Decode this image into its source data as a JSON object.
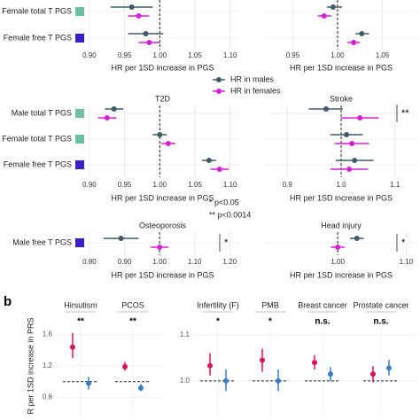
{
  "chart_data": [
    {
      "type": "forest",
      "categories": [
        "Female total T PGS",
        "Female free T PGS"
      ],
      "category_colors": [
        "#6dbfa6",
        "#3a1fc9"
      ],
      "series": [
        {
          "color": "#3d5c67",
          "values": [
            0.96,
            0.98
          ],
          "lower": [
            0.93,
            0.955
          ],
          "upper": [
            0.99,
            1.005
          ]
        },
        {
          "color": "#d61fd6",
          "values": [
            0.97,
            0.985
          ],
          "lower": [
            0.955,
            0.97
          ],
          "upper": [
            0.985,
            1.0
          ]
        }
      ],
      "xlim": [
        0.895,
        1.113
      ],
      "xticks": [
        {
          "value": 0.9,
          "label": "0.90"
        },
        {
          "value": 0.95,
          "label": "0.95"
        },
        {
          "value": 1,
          "label": "1.00"
        },
        {
          "value": 1.05,
          "label": "1.05"
        },
        {
          "value": 1.1,
          "label": "1.10"
        }
      ],
      "refline": 1,
      "xlabel": "HR per 1SD increase in PGS"
    },
    {
      "type": "forest",
      "series": [
        {
          "color": "#3d5c67",
          "values": [
            0.995,
            1.027
          ],
          "lower": [
            0.988,
            1.02
          ],
          "upper": [
            1.005,
            1.035
          ]
        },
        {
          "color": "#d61fd6",
          "values": [
            0.985,
            1.018
          ],
          "lower": [
            0.978,
            1.011
          ],
          "upper": [
            0.993,
            1.025
          ]
        }
      ],
      "xlim": [
        0.92,
        1.088
      ],
      "xticks": [
        {
          "value": 0.95,
          "label": "0.95"
        },
        {
          "value": 1,
          "label": "1.00"
        },
        {
          "value": 1.05,
          "label": "1.05"
        }
      ],
      "refline": 1,
      "xlabel": "HR per 1SD increase in PGS"
    },
    {
      "type": "forest",
      "title": "T2D",
      "categories": [
        "Male total T PGS",
        "Female total T PGS",
        "Female free T PGS"
      ],
      "category_colors": [
        "#6dbfa6",
        "#6dbfa6",
        "#3a1fc9"
      ],
      "series": [
        {
          "name": "HR in males",
          "color": "#3d5c67",
          "values": [
            0.935,
            1.0,
            1.07
          ],
          "lower": [
            0.922,
            0.99,
            1.06
          ],
          "upper": [
            0.948,
            1.01,
            1.08
          ]
        },
        {
          "name": "HR in females",
          "color": "#d61fd6",
          "values": [
            0.925,
            1.012,
            1.085
          ],
          "lower": [
            0.912,
            1.002,
            1.072
          ],
          "upper": [
            0.938,
            1.022,
            1.098
          ]
        }
      ],
      "xlim": [
        0.895,
        1.113
      ],
      "xticks": [
        {
          "value": 0.9,
          "label": "0.90"
        },
        {
          "value": 0.95,
          "label": "0.95"
        },
        {
          "value": 1,
          "label": "1.00"
        },
        {
          "value": 1.05,
          "label": "1.05"
        },
        {
          "value": 1.1,
          "label": "1.10"
        }
      ],
      "refline": 1,
      "xlabel": "HR per 1SD increase in PGS"
    },
    {
      "type": "forest",
      "title": "Stroke",
      "series": [
        {
          "color": "#3d5c67",
          "values": [
            0.972,
            1.01,
            1.025
          ],
          "lower": [
            0.94,
            0.98,
            0.99
          ],
          "upper": [
            1.003,
            1.04,
            1.06
          ]
        },
        {
          "color": "#d61fd6",
          "values": [
            1.035,
            1.02,
            1.015
          ],
          "lower": [
            1.0,
            0.988,
            0.98
          ],
          "upper": [
            1.07,
            1.052,
            1.05
          ]
        }
      ],
      "significance": [
        "**",
        null,
        null
      ],
      "xlim": [
        0.86,
        1.14
      ],
      "xticks": [
        0.9,
        {
          "value": 1,
          "label": "1.0"
        },
        1.1
      ],
      "refline": 1,
      "xlabel": "HR per 1SD increase in PGS"
    },
    {
      "type": "forest",
      "title": "Osteoporosis",
      "categories": [
        "Male free T PGS"
      ],
      "category_colors": [
        "#3a1fc9"
      ],
      "series": [
        {
          "color": "#3d5c67",
          "values": [
            0.89
          ],
          "lower": [
            0.84
          ],
          "upper": [
            0.94
          ]
        },
        {
          "color": "#d61fd6",
          "values": [
            1.0
          ],
          "lower": [
            0.975
          ],
          "upper": [
            1.025
          ]
        }
      ],
      "significance": [
        "*"
      ],
      "xlim": [
        0.79,
        1.227
      ],
      "xticks": [
        {
          "value": 0.8,
          "label": "0.80"
        },
        {
          "value": 0.9,
          "label": "0.90"
        },
        {
          "value": 1,
          "label": "1.00"
        },
        {
          "value": 1.1,
          "label": "1.10"
        },
        {
          "value": 1.2,
          "label": "1.20"
        }
      ],
      "refline": 1,
      "xlabel": "HR per 1SD increase in PGS"
    },
    {
      "type": "forest",
      "title": "Head injury",
      "series": [
        {
          "color": "#3d5c67",
          "values": [
            1.028
          ],
          "lower": [
            1.018
          ],
          "upper": [
            1.038
          ]
        },
        {
          "color": "#d61fd6",
          "values": [
            1.0
          ],
          "lower": [
            0.99
          ],
          "upper": [
            1.01
          ]
        }
      ],
      "significance": [
        "*"
      ],
      "xlim": [
        0.895,
        1.115
      ],
      "xticks": [
        {
          "value": 1,
          "label": "1.00"
        },
        {
          "value": 1.1,
          "label": "1.10"
        }
      ],
      "refline": 1,
      "xlabel": "HR per 1SD increase in PGS"
    },
    {
      "type": "dot-interval",
      "categories": [
        "Hirsutism",
        "PCOS"
      ],
      "significance": [
        "**",
        "**"
      ],
      "ylabel": "R per 1SD increase in PRS",
      "series": [
        {
          "color": "#d4145a",
          "values": [
            1.44,
            1.19
          ],
          "lower": [
            1.3,
            1.14
          ],
          "upper": [
            1.62,
            1.25
          ]
        },
        {
          "color": "#3b7dc4",
          "values": [
            0.98,
            0.92
          ],
          "lower": [
            0.9,
            0.88
          ],
          "upper": [
            1.06,
            0.97
          ]
        }
      ],
      "ylim": [
        0.558,
        1.842
      ],
      "yticks": [
        0.8,
        1.2,
        1.6
      ],
      "refline": 1
    },
    {
      "type": "dot-interval",
      "categories": [
        "Infertility (F)",
        "PMB",
        "Breast cancer",
        "Prostate cancer"
      ],
      "significance": [
        "*",
        "*",
        "n.s.",
        "n.s."
      ],
      "series": [
        {
          "color": "#d4145a",
          "values": [
            1.033,
            1.045,
            1.04,
            1.015
          ],
          "lower": [
            1.012,
            1.02,
            1.025,
            0.997
          ],
          "upper": [
            1.06,
            1.07,
            1.056,
            1.032
          ]
        },
        {
          "color": "#3b7dc4",
          "values": [
            1.0,
            1.0,
            1.015,
            1.028
          ],
          "lower": [
            0.978,
            0.978,
            1.0,
            1.012
          ],
          "upper": [
            1.025,
            1.025,
            1.03,
            1.046
          ]
        }
      ],
      "ylim": [
        0.923,
        1.142
      ],
      "yticks": [
        {
          "value": 1,
          "label": "1.0"
        },
        1.1
      ],
      "refline": 1
    }
  ],
  "notes": [
    "* p<0.05",
    "** p<0.0014"
  ],
  "panel_label": "b"
}
